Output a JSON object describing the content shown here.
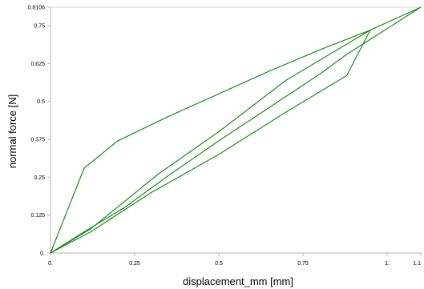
{
  "chart_data": {
    "type": "line",
    "title": "",
    "xlabel": "displacement_mm [mm]",
    "ylabel": "normal force [N]",
    "xlim": [
      0,
      1.1
    ],
    "ylim": [
      0,
      0.8106
    ],
    "grid": false,
    "line_color": "#1e8c1e",
    "x_ticks": [
      {
        "value": 0,
        "label": "0."
      },
      {
        "value": 0.25,
        "label": "0.25"
      },
      {
        "value": 0.5,
        "label": "0.5"
      },
      {
        "value": 0.75,
        "label": "0.75"
      },
      {
        "value": 1.0,
        "label": "1."
      },
      {
        "value": 1.1,
        "label": "1.1"
      }
    ],
    "y_ticks": [
      {
        "value": 0,
        "label": "0."
      },
      {
        "value": 0.125,
        "label": "0.125"
      },
      {
        "value": 0.25,
        "label": "0.25"
      },
      {
        "value": 0.375,
        "label": "0.375"
      },
      {
        "value": 0.5,
        "label": "0.5"
      },
      {
        "value": 0.625,
        "label": "0.625"
      },
      {
        "value": 0.75,
        "label": "0.75"
      },
      {
        "value": 0.8106,
        "label": "0.8106"
      }
    ],
    "series": [
      {
        "x": [
          0,
          0.1,
          0.22,
          0.35,
          0.5,
          0.65,
          0.8,
          0.88,
          1.1
        ],
        "y": [
          0,
          0.07,
          0.15,
          0.255,
          0.37,
          0.48,
          0.59,
          0.655,
          0.8106
        ]
      },
      {
        "x": [
          1.1,
          0.95,
          0.8,
          0.65,
          0.5,
          0.35,
          0.2,
          0.1,
          0
        ],
        "y": [
          0.8106,
          0.735,
          0.67,
          0.6,
          0.525,
          0.45,
          0.37,
          0.28,
          0
        ]
      },
      {
        "x": [
          0,
          0.12,
          0.32,
          0.5,
          0.7,
          0.95
        ],
        "y": [
          0,
          0.08,
          0.26,
          0.4,
          0.57,
          0.735
        ]
      },
      {
        "x": [
          0.95,
          0.88,
          0.7,
          0.5,
          0.3,
          0.12,
          0
        ],
        "y": [
          0.735,
          0.585,
          0.465,
          0.325,
          0.2,
          0.07,
          0
        ]
      }
    ]
  }
}
